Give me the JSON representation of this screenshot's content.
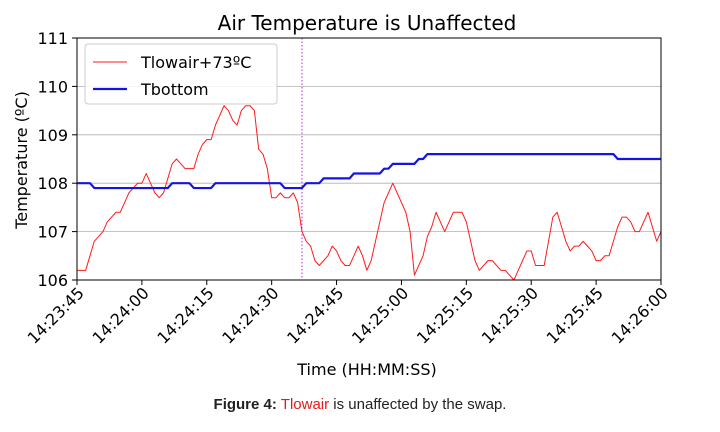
{
  "chart_data": {
    "type": "line",
    "title": "Air Temperature is Unaffected",
    "xlabel": "Time (HH:MM:SS)",
    "ylabel": "Temperature (ºC)",
    "xlim": [
      "14:23:45",
      "14:26:00"
    ],
    "ylim": [
      106,
      111
    ],
    "x_ticks": [
      "14:23:45",
      "14:24:00",
      "14:24:15",
      "14:24:30",
      "14:24:45",
      "14:25:00",
      "14:25:15",
      "14:25:30",
      "14:25:45",
      "14:26:00"
    ],
    "y_ticks": [
      106,
      107,
      108,
      109,
      110,
      111
    ],
    "grid": "y",
    "legend_position": "top-left",
    "vline": {
      "x": "14:24:37",
      "color": "#cc44ff",
      "style": "dotted"
    },
    "series": [
      {
        "name": "Tlowair+73ºC",
        "color": "#ff1a1a",
        "x": [
          0,
          2,
          3,
          4,
          5,
          6,
          7,
          8,
          9,
          10,
          11,
          12,
          13,
          14,
          15,
          16,
          17,
          18,
          19,
          20,
          21,
          22,
          23,
          24,
          25,
          26,
          27,
          28,
          29,
          30,
          31,
          32,
          33,
          34,
          35,
          36,
          37,
          38,
          39,
          40,
          41,
          42,
          43,
          44,
          45,
          46,
          47,
          48,
          49,
          50,
          51,
          52,
          53,
          54,
          55,
          56,
          57,
          58,
          59,
          60,
          61,
          62,
          63,
          64,
          65,
          66,
          67,
          68,
          69,
          70,
          71,
          72,
          73,
          74,
          75,
          76,
          77,
          78,
          79,
          80,
          81,
          82,
          83,
          84,
          85,
          86,
          87,
          88,
          89,
          90,
          91,
          92,
          93,
          94,
          95,
          96,
          97,
          98,
          99,
          100,
          101,
          102,
          103,
          104,
          105,
          106,
          107,
          108,
          109,
          110,
          111,
          112,
          113,
          114,
          115,
          116,
          117,
          118,
          119,
          120,
          121,
          122,
          123,
          124,
          125,
          126,
          127,
          128,
          129,
          130,
          131,
          132,
          133,
          134,
          135
        ],
        "y": [
          106.2,
          106.2,
          106.5,
          106.8,
          106.9,
          107.0,
          107.2,
          107.3,
          107.4,
          107.4,
          107.6,
          107.8,
          107.9,
          108.0,
          108.0,
          108.2,
          108.0,
          107.8,
          107.7,
          107.8,
          108.1,
          108.4,
          108.5,
          108.4,
          108.3,
          108.3,
          108.3,
          108.6,
          108.8,
          108.9,
          108.9,
          109.2,
          109.4,
          109.6,
          109.5,
          109.3,
          109.2,
          109.5,
          109.6,
          109.6,
          109.5,
          108.7,
          108.6,
          108.3,
          107.7,
          107.7,
          107.8,
          107.7,
          107.7,
          107.8,
          107.6,
          107.0,
          106.8,
          106.7,
          106.4,
          106.3,
          106.4,
          106.5,
          106.7,
          106.6,
          106.4,
          106.3,
          106.3,
          106.5,
          106.7,
          106.5,
          106.2,
          106.4,
          106.8,
          107.2,
          107.6,
          107.8,
          108.0,
          107.8,
          107.6,
          107.4,
          107.0,
          106.1,
          106.3,
          106.5,
          106.9,
          107.1,
          107.4,
          107.2,
          107.0,
          107.2,
          107.4,
          107.4,
          107.4,
          107.2,
          106.8,
          106.4,
          106.2,
          106.3,
          106.4,
          106.4,
          106.3,
          106.2,
          106.2,
          106.1,
          106.0,
          106.2,
          106.4,
          106.6,
          106.6,
          106.3,
          106.3,
          106.3,
          106.8,
          107.3,
          107.4,
          107.1,
          106.8,
          106.6,
          106.7,
          106.7,
          106.8,
          106.7,
          106.6,
          106.4,
          106.4,
          106.5,
          106.5,
          106.8,
          107.1,
          107.3,
          107.3,
          107.2,
          107.0,
          107.0,
          107.2,
          107.4,
          107.1,
          106.8,
          107.0
        ]
      },
      {
        "name": "Tbottom",
        "color": "#1515e0",
        "x": [
          0,
          3,
          4,
          21,
          22,
          26,
          27,
          31,
          32,
          47,
          48,
          52,
          53,
          56,
          57,
          63,
          64,
          70,
          71,
          72,
          73,
          78,
          79,
          80,
          81,
          89,
          90,
          106,
          107,
          124,
          125,
          135
        ],
        "y": [
          108.0,
          108.0,
          107.9,
          107.9,
          108.0,
          108.0,
          107.9,
          107.9,
          108.0,
          108.0,
          107.9,
          107.9,
          108.0,
          108.0,
          108.1,
          108.1,
          108.2,
          108.2,
          108.3,
          108.3,
          108.4,
          108.4,
          108.5,
          108.5,
          108.6,
          108.6,
          108.6,
          108.6,
          108.6,
          108.6,
          108.5,
          108.5
        ]
      }
    ]
  },
  "caption": {
    "label": "Figure 4:",
    "highlight": "Tlowair",
    "rest": " is unaffected by the swap."
  }
}
